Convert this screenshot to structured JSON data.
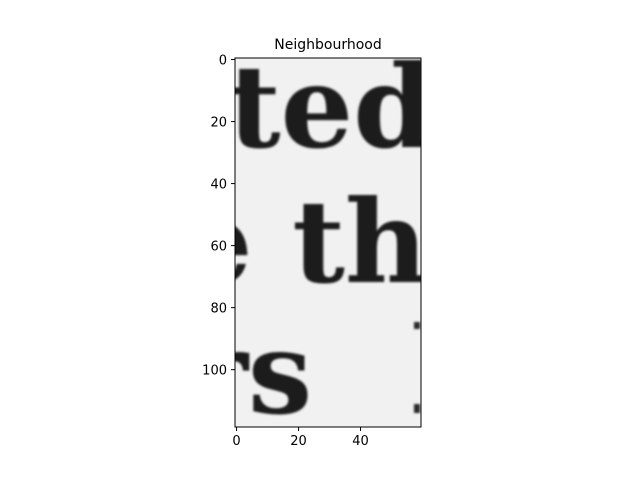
{
  "chart_data": {
    "type": "image",
    "title": "Neighbourhood",
    "xlabel": "",
    "ylabel": "",
    "image_shape": [
      119,
      60
    ],
    "xlim": [
      -0.5,
      59.5
    ],
    "ylim": [
      118.5,
      -0.5
    ],
    "xticks": [
      0,
      20,
      40
    ],
    "yticks": [
      0,
      20,
      40,
      60,
      80,
      100
    ],
    "grid": false,
    "image_content": {
      "description": "grayscale crop of printed serif text",
      "lines": [
        "ted",
        "e th",
        "rs"
      ]
    }
  },
  "colors": {
    "background": "#f1f1f1",
    "ink": "#1c1c1c",
    "axis": "#000000"
  }
}
